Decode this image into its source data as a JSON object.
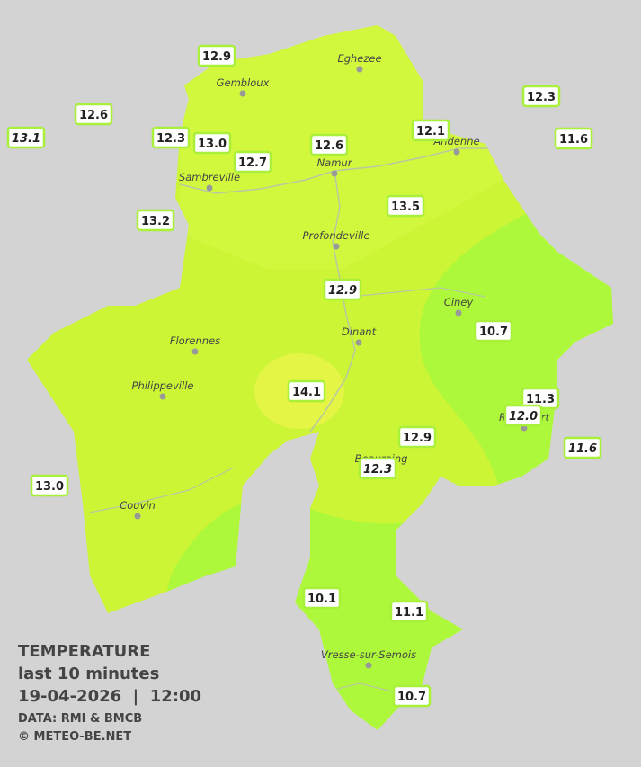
{
  "cities": [
    "Eghezee",
    "Gembloux",
    "Andenne",
    "Namur",
    "Sambreville",
    "Profondeville",
    "Ciney",
    "Dinant",
    "Florennes",
    "Philippeville",
    "Rochefort",
    "Beauraing",
    "Couvin",
    "Vresse-sur-Semois"
  ],
  "stations": [
    {
      "value": "12.9",
      "italic": false
    },
    {
      "value": "12.6",
      "italic": false
    },
    {
      "value": "13.1",
      "italic": true
    },
    {
      "value": "12.3",
      "italic": false
    },
    {
      "value": "13.0",
      "italic": false
    },
    {
      "value": "12.7",
      "italic": false
    },
    {
      "value": "12.6",
      "italic": false
    },
    {
      "value": "12.1",
      "italic": false
    },
    {
      "value": "12.3",
      "italic": false
    },
    {
      "value": "11.6",
      "italic": false
    },
    {
      "value": "13.2",
      "italic": false
    },
    {
      "value": "13.5",
      "italic": false
    },
    {
      "value": "12.9",
      "italic": true
    },
    {
      "value": "10.7",
      "italic": false
    },
    {
      "value": "14.1",
      "italic": false
    },
    {
      "value": "11.3",
      "italic": false
    },
    {
      "value": "12.0",
      "italic": true
    },
    {
      "value": "12.9",
      "italic": false
    },
    {
      "value": "11.6",
      "italic": true
    },
    {
      "value": "12.3",
      "italic": true
    },
    {
      "value": "13.0",
      "italic": false
    },
    {
      "value": "10.1",
      "italic": false
    },
    {
      "value": "11.1",
      "italic": false
    },
    {
      "value": "10.7",
      "italic": false
    }
  ],
  "legend": {
    "title": "TEMPERATURE",
    "subtitle": "last 10 minutes",
    "datetime": "19-04-2026  |  12:00",
    "source": "DATA: RMI & BMCB",
    "copyright": "© METEO-BE.NET"
  }
}
